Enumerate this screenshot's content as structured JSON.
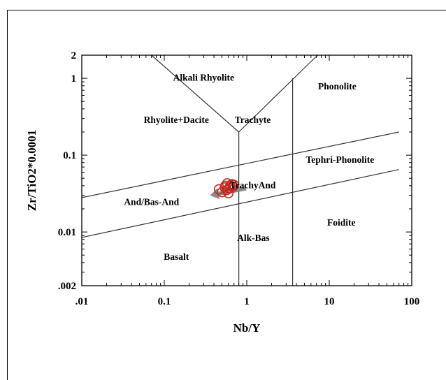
{
  "chart_data": {
    "type": "scatter",
    "title": "",
    "xlabel": "Nb/Y",
    "ylabel": "Zr/TiO2*0.0001",
    "xscale": "log",
    "yscale": "log",
    "xlim": [
      0.01,
      100
    ],
    "ylim": [
      0.002,
      2
    ],
    "grid": false,
    "x_ticks": [
      {
        "value": 0.01,
        "label": ".01"
      },
      {
        "value": 0.1,
        "label": "0.1"
      },
      {
        "value": 1,
        "label": "1"
      },
      {
        "value": 10,
        "label": "10"
      },
      {
        "value": 100,
        "label": "100"
      }
    ],
    "y_ticks": [
      {
        "value": 0.002,
        "label": ".002"
      },
      {
        "value": 0.01,
        "label": "0.01"
      },
      {
        "value": 0.1,
        "label": "0.1"
      },
      {
        "value": 1,
        "label": "1"
      },
      {
        "value": 2,
        "label": "2"
      }
    ],
    "boundaries": [
      {
        "name": "upper-sloping",
        "points": [
          [
            0.01,
            0.028
          ],
          [
            70,
            0.2
          ]
        ]
      },
      {
        "name": "lower-sloping",
        "points": [
          [
            0.01,
            0.0085
          ],
          [
            70,
            0.065
          ]
        ]
      },
      {
        "name": "v-left",
        "points": [
          [
            0.07,
            2
          ],
          [
            0.8,
            0.2
          ]
        ]
      },
      {
        "name": "v-right",
        "points": [
          [
            0.8,
            0.2
          ],
          [
            7.2,
            2
          ]
        ]
      },
      {
        "name": "trachyte-vertical",
        "points": [
          [
            0.8,
            0.2
          ],
          [
            0.8,
            0.002
          ]
        ]
      },
      {
        "name": "phonolite-vertical",
        "points": [
          [
            3.6,
            1.0
          ],
          [
            3.6,
            0.002
          ]
        ]
      }
    ],
    "field_labels": [
      {
        "text": "Alkali Rhyolite",
        "x": 0.3,
        "y": 1.03
      },
      {
        "text": "Phonolite",
        "x": 12.5,
        "y": 0.8
      },
      {
        "text": "Rhyolite+Dacite",
        "x": 0.14,
        "y": 0.29
      },
      {
        "text": "Trachyte",
        "x": 1.18,
        "y": 0.29
      },
      {
        "text": "Tephri-Phonolite",
        "x": 13.5,
        "y": 0.088
      },
      {
        "text": "TrachyAnd",
        "x": 1.18,
        "y": 0.041
      },
      {
        "text": "And/Bas-And",
        "x": 0.07,
        "y": 0.025
      },
      {
        "text": "Foidite",
        "x": 14,
        "y": 0.0135
      },
      {
        "text": "Alk-Bas",
        "x": 1.2,
        "y": 0.0085
      },
      {
        "text": "Basalt",
        "x": 0.14,
        "y": 0.0048
      }
    ],
    "series": [
      {
        "marker": "open-circle",
        "color": "#c0281e",
        "x": [
          0.46,
          0.5,
          0.54,
          0.57,
          0.6,
          0.63,
          0.66,
          0.7,
          0.55,
          0.62,
          0.58,
          0.68
        ],
        "y": [
          0.036,
          0.033,
          0.038,
          0.035,
          0.032,
          0.04,
          0.042,
          0.041,
          0.04,
          0.037,
          0.043,
          0.039
        ]
      }
    ],
    "arrow": {
      "color": "#8a8a8a",
      "from": [
        0.98,
        0.037
      ],
      "to": [
        0.36,
        0.03
      ]
    }
  }
}
